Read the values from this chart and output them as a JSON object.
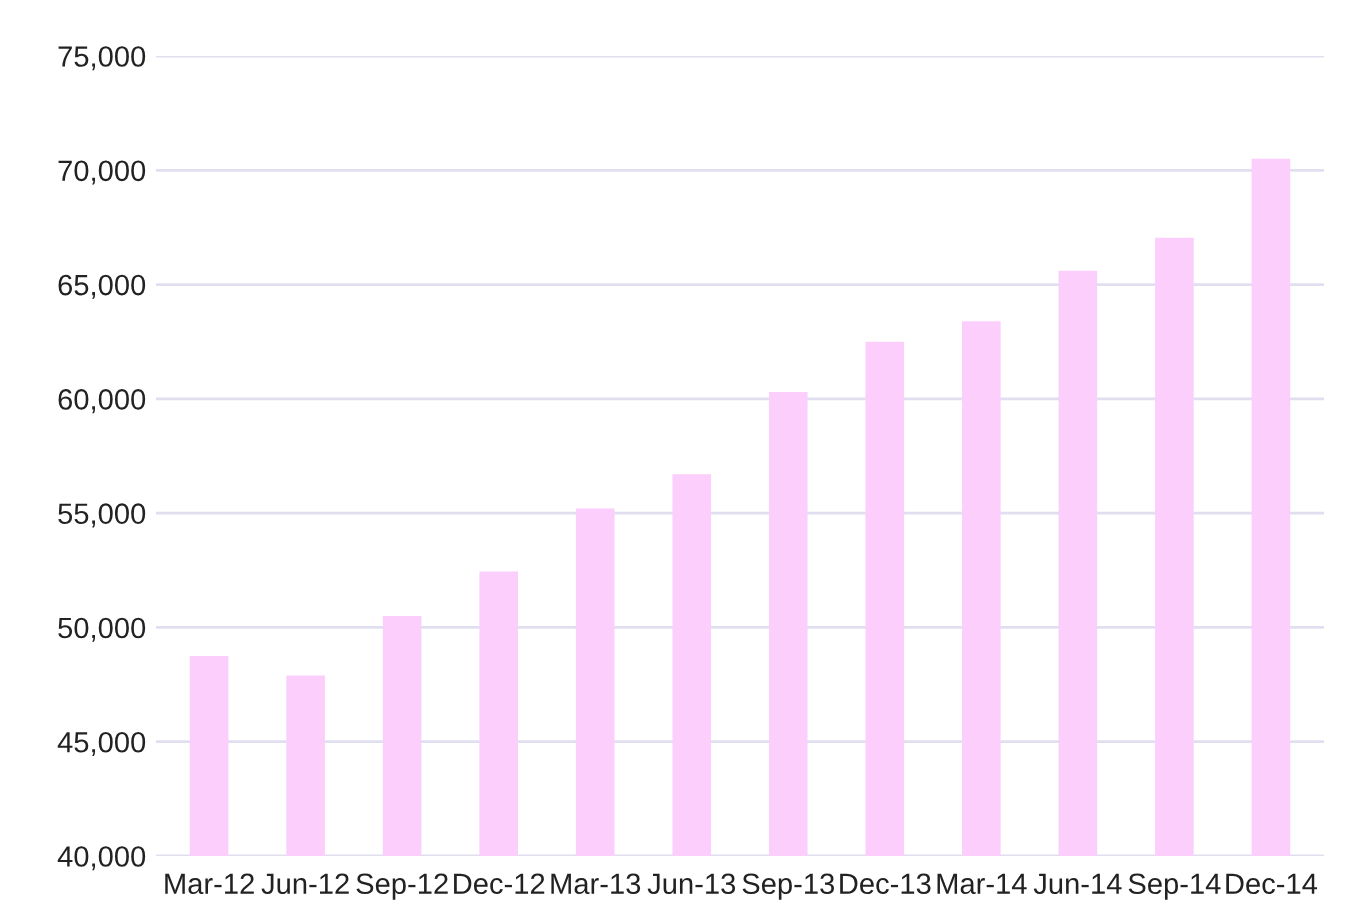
{
  "chart_data": {
    "type": "bar",
    "categories": [
      "Mar-12",
      "Jun-12",
      "Sep-12",
      "Dec-12",
      "Mar-13",
      "Jun-13",
      "Sep-13",
      "Dec-13",
      "Mar-14",
      "Jun-14",
      "Sep-14",
      "Dec-14"
    ],
    "values": [
      48750,
      47900,
      50500,
      52450,
      55200,
      56700,
      60300,
      62500,
      63400,
      65600,
      67050,
      70500
    ],
    "color": "#fccefc",
    "ylim": [
      40000,
      75000
    ],
    "yticks": [
      {
        "value": 40000,
        "label": "40,000"
      },
      {
        "value": 45000,
        "label": "45,000"
      },
      {
        "value": 50000,
        "label": "50,000"
      },
      {
        "value": 55000,
        "label": "55,000"
      },
      {
        "value": 60000,
        "label": "60,000"
      },
      {
        "value": 65000,
        "label": "65,000"
      },
      {
        "value": 70000,
        "label": "70,000"
      },
      {
        "value": 75000,
        "label": "75,000"
      }
    ],
    "grid": "y",
    "legend": false
  }
}
